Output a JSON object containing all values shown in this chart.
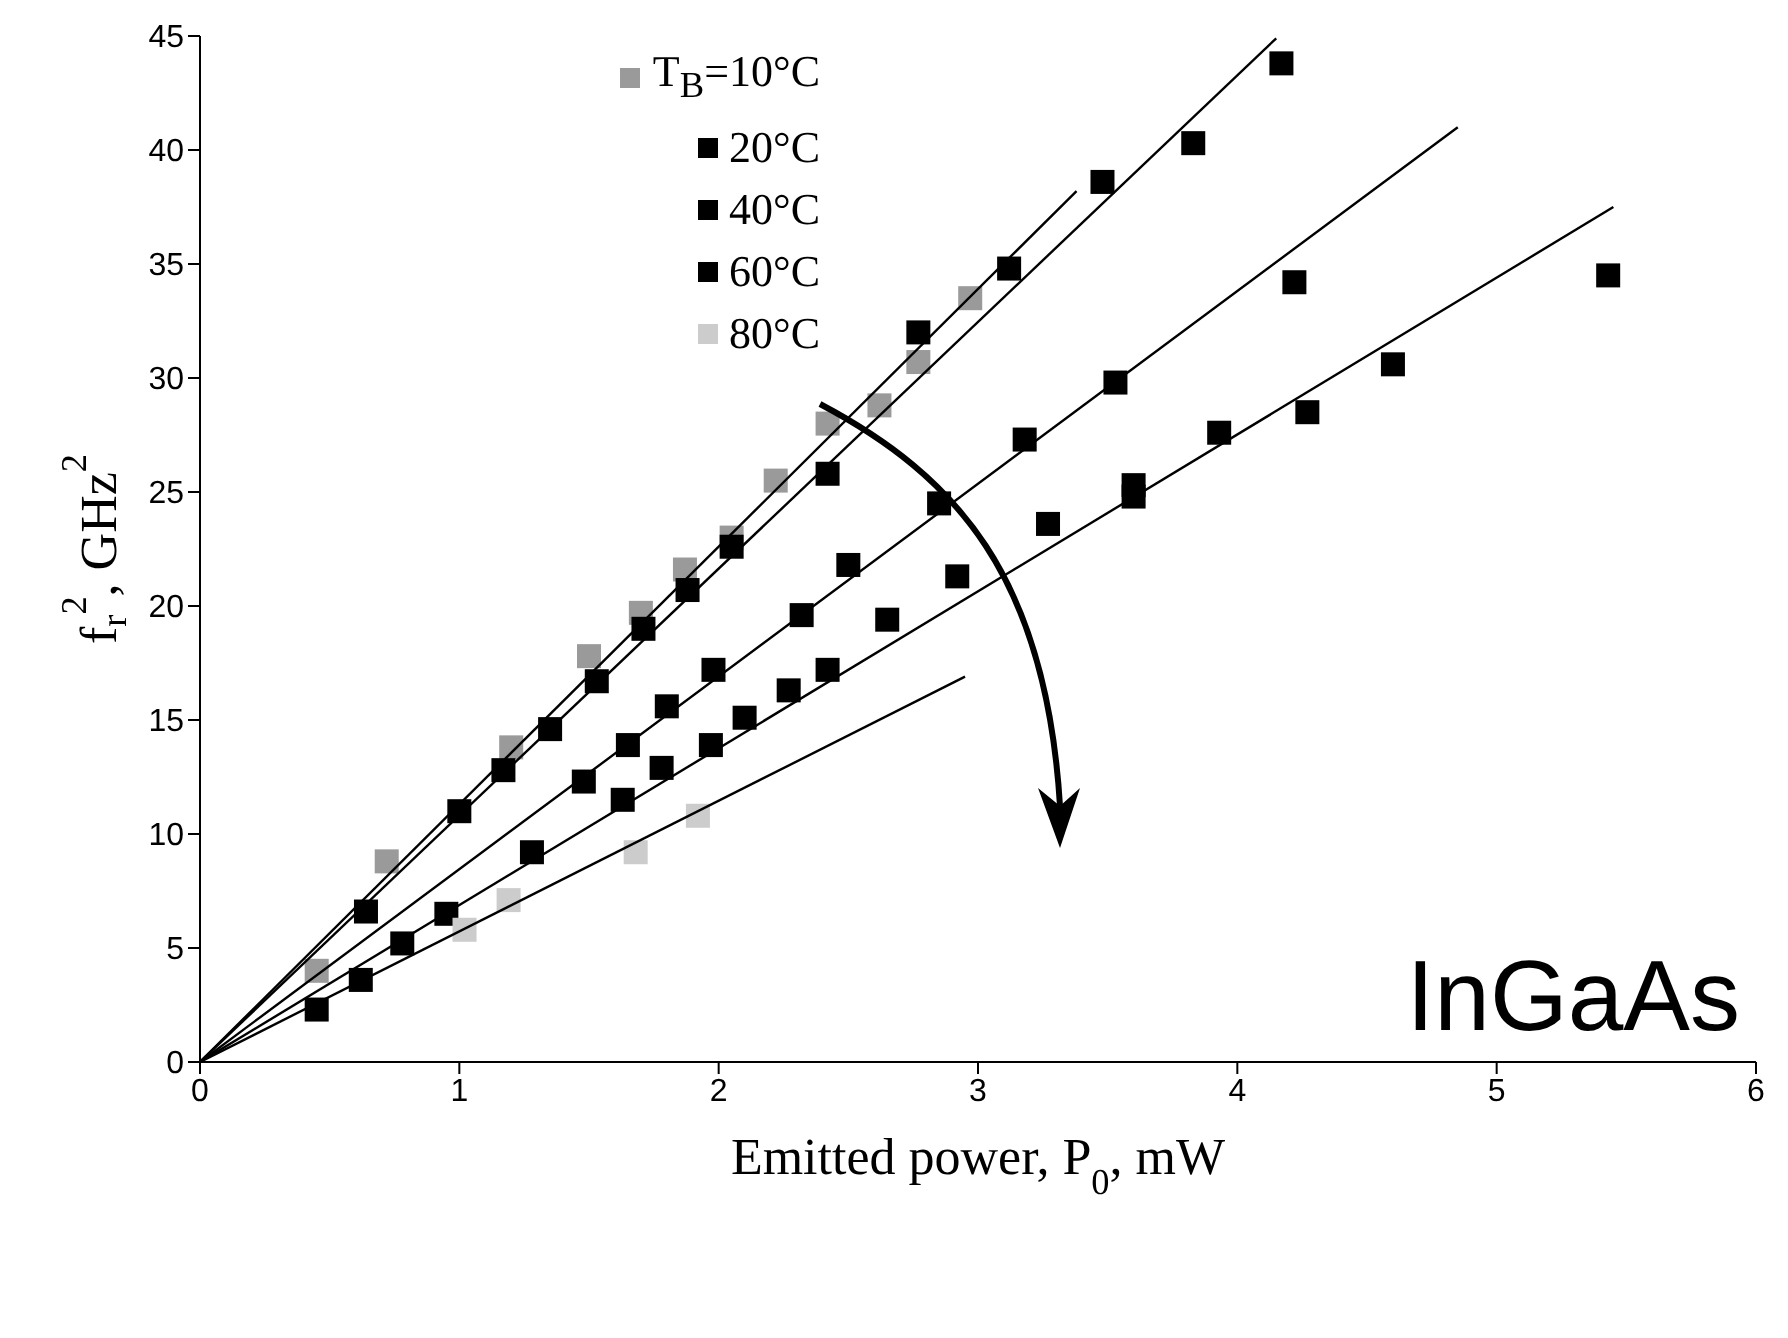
{
  "chart_data": {
    "type": "scatter",
    "xlabel": "Emitted power, P$_{0}$, mW",
    "ylabel": "f$_{r}$$^{2}$, GHz$^{2}$",
    "xlim": [
      0,
      6
    ],
    "xticks": [
      0,
      1,
      2,
      3,
      4,
      5,
      6
    ],
    "ylim": [
      0,
      45
    ],
    "yticks": [
      0,
      5,
      10,
      15,
      20,
      25,
      30,
      35,
      40,
      45
    ],
    "legend": "top left",
    "marker": "square",
    "annotations": [
      "InGaAs"
    ],
    "series": [
      {
        "name": "T$_{B}$=10°C",
        "color": "#9a9a9a",
        "x": [
          0.45,
          0.72,
          1.2,
          1.5,
          1.7,
          1.87,
          2.05,
          2.22,
          2.42,
          2.62,
          2.77,
          2.97
        ],
        "values": [
          4,
          8.8,
          13.8,
          17.8,
          19.7,
          21.6,
          23,
          25.5,
          28,
          28.8,
          30.7,
          33.5
        ]
      },
      {
        "name": "20°C",
        "color": "#000000",
        "x": [
          0.64,
          1.0,
          1.17,
          1.35,
          1.53,
          1.71,
          1.88,
          2.05,
          2.42,
          2.77,
          3.12,
          3.48,
          3.83,
          4.17
        ],
        "values": [
          6.6,
          11,
          12.8,
          14.6,
          16.7,
          19,
          20.7,
          22.6,
          25.8,
          32,
          34.8,
          38.6,
          40.3,
          43.8
        ]
      },
      {
        "name": "40°C",
        "color": "#000000",
        "x": [
          1.48,
          1.65,
          1.8,
          1.98,
          2.32,
          2.5,
          2.85,
          3.18,
          3.53,
          4.22
        ],
        "values": [
          12.3,
          13.9,
          15.6,
          17.2,
          19.6,
          21.8,
          24.5,
          27.3,
          29.8,
          34.2
        ]
      },
      {
        "name": "60°C",
        "color": "#000000",
        "x": [
          0.45,
          0.62,
          0.78,
          0.95,
          1.28,
          1.63,
          1.78,
          1.97,
          2.1,
          2.27,
          2.42,
          2.65,
          2.92,
          3.27,
          3.6,
          3.6,
          3.93,
          4.27,
          4.6,
          5.43
        ],
        "values": [
          2.3,
          3.6,
          5.2,
          6.5,
          9.2,
          11.5,
          12.9,
          13.9,
          15.1,
          16.3,
          17.2,
          19.4,
          21.3,
          23.6,
          25.3,
          24.8,
          27.6,
          28.5,
          30.6,
          34.5
        ]
      },
      {
        "name": "80°C",
        "color": "#cccccc",
        "x": [
          1.02,
          1.19,
          1.68,
          1.92
        ],
        "values": [
          5.8,
          7.1,
          9.2,
          10.8
        ]
      },
      {
        "type": "line",
        "marker": "none",
        "color": "#000000",
        "x": [
          0,
          3.38
        ],
        "values": [
          0,
          38.2
        ]
      },
      {
        "type": "line",
        "marker": "none",
        "color": "#000000",
        "x": [
          0,
          4.15
        ],
        "values": [
          0,
          44.9
        ]
      },
      {
        "type": "line",
        "marker": "none",
        "color": "#000000",
        "x": [
          0,
          4.85
        ],
        "values": [
          0,
          41
        ]
      },
      {
        "type": "line",
        "marker": "none",
        "color": "#000000",
        "x": [
          0,
          5.45
        ],
        "values": [
          0,
          37.5
        ]
      },
      {
        "type": "line",
        "marker": "none",
        "color": "#000000",
        "x": [
          0,
          2.95
        ],
        "values": [
          0,
          16.9
        ]
      }
    ]
  }
}
